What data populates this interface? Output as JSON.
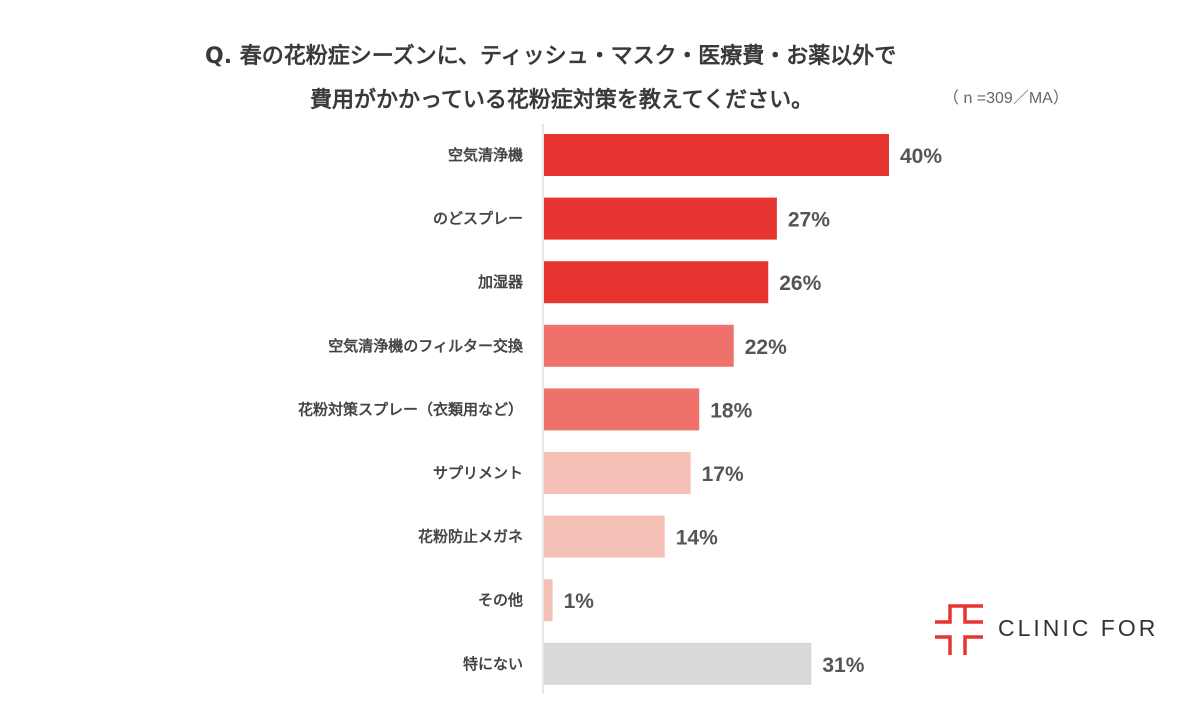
{
  "chart_data": {
    "type": "bar",
    "orientation": "horizontal",
    "title_line1": "Q. 春の花粉症シーズンに、ティッシュ・マスク・医療費・お薬以外で",
    "title_line2": "費用がかかっている花粉症対策を教えてください。",
    "note": "（ n =309／MA）",
    "categories": [
      "空気清浄機",
      "のどスプレー",
      "加湿器",
      "空気清浄機のフィルター交換",
      "花粉対策スプレー（衣類用など）",
      "サプリメント",
      "花粉防止メガネ",
      "その他",
      "特にない"
    ],
    "values": [
      40,
      27,
      26,
      22,
      18,
      17,
      14,
      1,
      31
    ],
    "value_labels": [
      "40%",
      "27%",
      "26%",
      "22%",
      "18%",
      "17%",
      "14%",
      "1%",
      "31%"
    ],
    "colors": [
      "#E63530",
      "#E63530",
      "#E63530",
      "#EE726B",
      "#EE726B",
      "#F5C0B6",
      "#F5C0B6",
      "#F5C0B6",
      "#D9D9D9"
    ],
    "unit": "%",
    "grid": false
  },
  "logo": {
    "text": "CLINIC FOR",
    "color": "#E63530"
  }
}
